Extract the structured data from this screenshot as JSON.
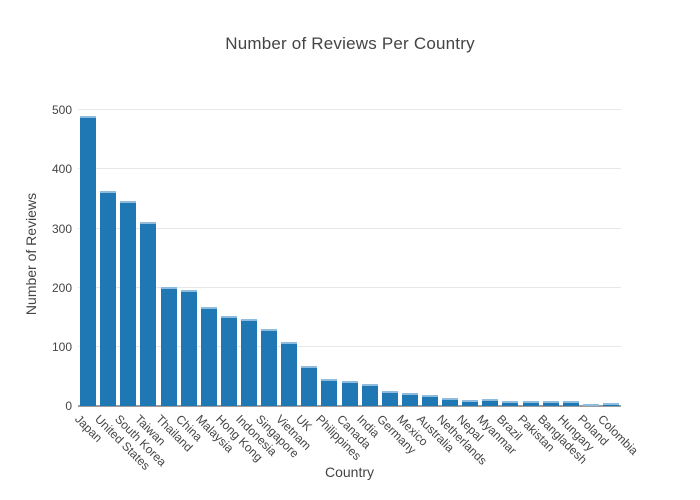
{
  "chart_data": {
    "type": "bar",
    "title": "Number of Reviews Per Country",
    "xlabel": "Country",
    "ylabel": "Number of Reviews",
    "categories": [
      "Japan",
      "United States",
      "South Korea",
      "Taiwan",
      "Thailand",
      "China",
      "Malaysia",
      "Hong Kong",
      "Indonesia",
      "Singapore",
      "Vietnam",
      "UK",
      "Philippines",
      "Canada",
      "India",
      "Germany",
      "Mexico",
      "Australia",
      "Netherlands",
      "Nepal",
      "Myanmar",
      "Brazil",
      "Pakistan",
      "Bangladesh",
      "Hungary",
      "Poland",
      "Colombia"
    ],
    "values": [
      490,
      364,
      347,
      311,
      202,
      196,
      167,
      152,
      147,
      131,
      109,
      67,
      46,
      43,
      38,
      26,
      22,
      18,
      14,
      11,
      12,
      9,
      8,
      9,
      9,
      4,
      5
    ],
    "yticks": [
      0,
      100,
      200,
      300,
      400,
      500
    ],
    "ylim": [
      0,
      514
    ],
    "grid": true,
    "legend": false,
    "bar_color": "#1f77b4",
    "bar_cap_color": "#8fbcdc",
    "gridline_color": "#e8e8e8",
    "axis_line_color": "#9c9c9c",
    "text_color": "#444444"
  }
}
